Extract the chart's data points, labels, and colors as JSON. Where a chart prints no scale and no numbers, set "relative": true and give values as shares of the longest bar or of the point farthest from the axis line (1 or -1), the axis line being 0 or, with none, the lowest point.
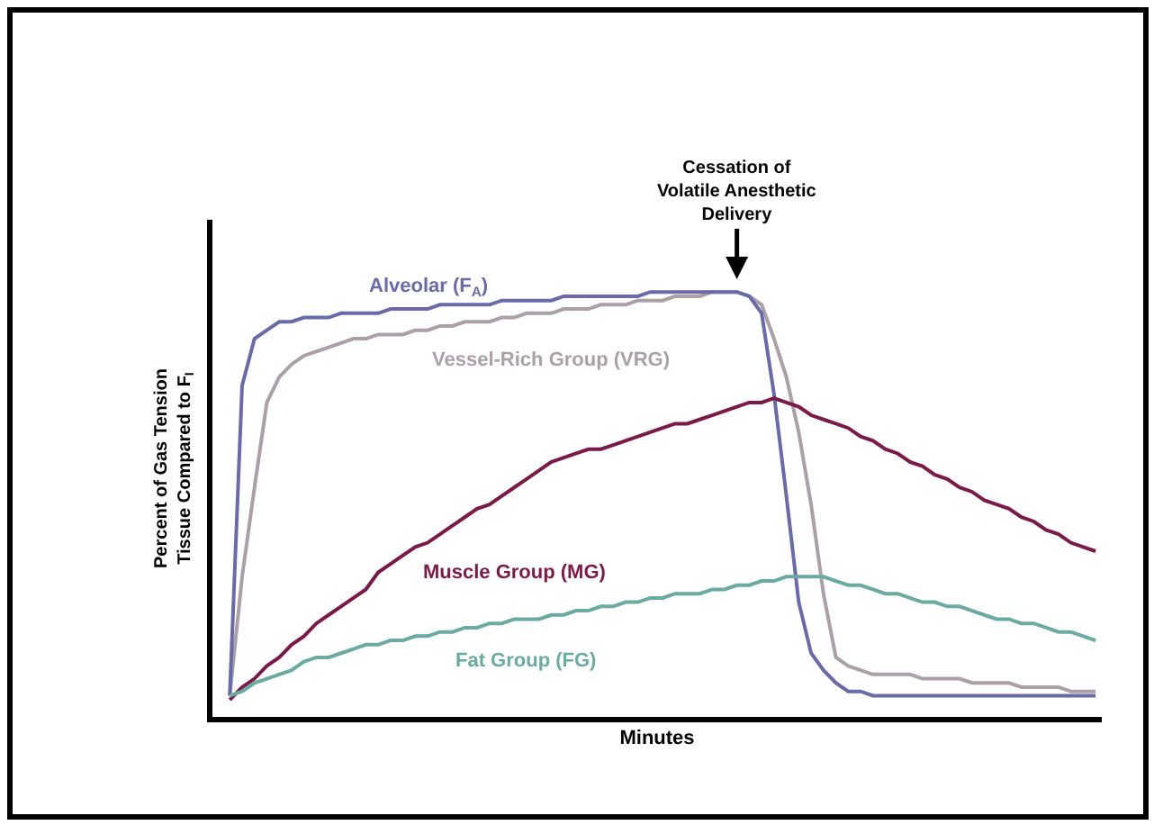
{
  "chart_data": {
    "type": "line",
    "relative": true,
    "xlabel": "Minutes",
    "ylabel": "Percent of Gas Tension Tissue Compared to F$_{I}$",
    "categories": [
      null,
      null,
      null,
      null,
      null,
      null,
      null,
      null,
      null,
      null,
      null,
      null,
      null,
      null,
      null,
      null,
      null,
      null,
      null,
      null,
      null,
      null,
      null,
      null,
      null,
      null,
      null,
      null,
      null,
      null,
      null,
      null,
      null,
      null,
      null,
      null,
      null,
      null,
      null,
      null,
      null,
      null,
      null,
      null,
      null,
      null,
      null,
      null,
      null,
      null,
      null,
      null,
      null,
      null,
      null,
      null,
      null,
      null,
      null,
      null,
      null,
      null,
      null,
      null,
      null,
      null,
      null,
      null,
      null,
      null,
      null
    ],
    "series": [
      {
        "name": "Vessel-Rich Group (VRG)",
        "color": "#a9a0a8",
        "values": [
          0.05,
          0.33,
          0.54,
          0.74,
          0.8,
          0.83,
          0.85,
          0.86,
          0.87,
          0.88,
          0.89,
          0.89,
          0.9,
          0.9,
          0.9,
          0.91,
          0.91,
          0.92,
          0.92,
          0.93,
          0.93,
          0.93,
          0.94,
          0.94,
          0.95,
          0.95,
          0.95,
          0.96,
          0.96,
          0.96,
          0.97,
          0.97,
          0.97,
          0.98,
          0.98,
          0.98,
          0.99,
          0.99,
          0.99,
          1.0,
          1.0,
          1.0,
          0.99,
          0.97,
          0.89,
          0.8,
          0.67,
          0.5,
          0.29,
          0.14,
          0.12,
          0.11,
          0.1,
          0.1,
          0.1,
          0.1,
          0.09,
          0.09,
          0.09,
          0.09,
          0.08,
          0.08,
          0.08,
          0.08,
          0.07,
          0.07,
          0.07,
          0.07,
          0.06,
          0.06,
          0.06
        ]
      },
      {
        "name": "Alveolar (F$_{A}$)",
        "color": "#6b6aa8",
        "values": [
          0.05,
          0.78,
          0.89,
          0.91,
          0.93,
          0.93,
          0.94,
          0.94,
          0.94,
          0.95,
          0.95,
          0.95,
          0.95,
          0.96,
          0.96,
          0.96,
          0.96,
          0.97,
          0.97,
          0.97,
          0.97,
          0.97,
          0.98,
          0.98,
          0.98,
          0.98,
          0.98,
          0.99,
          0.99,
          0.99,
          0.99,
          0.99,
          0.99,
          0.99,
          1.0,
          1.0,
          1.0,
          1.0,
          1.0,
          1.0,
          1.0,
          1.0,
          0.99,
          0.95,
          0.76,
          0.52,
          0.27,
          0.15,
          0.11,
          0.08,
          0.06,
          0.06,
          0.05,
          0.05,
          0.05,
          0.05,
          0.05,
          0.05,
          0.05,
          0.05,
          0.05,
          0.05,
          0.05,
          0.05,
          0.05,
          0.05,
          0.05,
          0.05,
          0.05,
          0.05,
          0.05
        ]
      },
      {
        "name": "Muscle Group (MG)",
        "color": "#7a1a48",
        "values": [
          0.04,
          0.07,
          0.09,
          0.12,
          0.14,
          0.17,
          0.19,
          0.22,
          0.24,
          0.26,
          0.28,
          0.3,
          0.34,
          0.36,
          0.38,
          0.4,
          0.41,
          0.43,
          0.45,
          0.47,
          0.49,
          0.5,
          0.52,
          0.54,
          0.56,
          0.58,
          0.6,
          0.61,
          0.62,
          0.63,
          0.63,
          0.64,
          0.65,
          0.66,
          0.67,
          0.68,
          0.69,
          0.69,
          0.7,
          0.71,
          0.72,
          0.73,
          0.74,
          0.74,
          0.75,
          0.74,
          0.73,
          0.71,
          0.7,
          0.69,
          0.68,
          0.66,
          0.65,
          0.63,
          0.62,
          0.6,
          0.59,
          0.57,
          0.56,
          0.54,
          0.53,
          0.51,
          0.5,
          0.49,
          0.47,
          0.46,
          0.44,
          0.43,
          0.41,
          0.4,
          0.39
        ]
      },
      {
        "name": "Fat Group (FG)",
        "color": "#6aaaa0",
        "values": [
          0.05,
          0.06,
          0.08,
          0.09,
          0.1,
          0.11,
          0.13,
          0.14,
          0.14,
          0.15,
          0.16,
          0.17,
          0.17,
          0.18,
          0.18,
          0.19,
          0.19,
          0.2,
          0.2,
          0.21,
          0.21,
          0.22,
          0.22,
          0.23,
          0.23,
          0.23,
          0.24,
          0.24,
          0.25,
          0.25,
          0.26,
          0.26,
          0.27,
          0.27,
          0.28,
          0.28,
          0.29,
          0.29,
          0.29,
          0.3,
          0.3,
          0.31,
          0.31,
          0.32,
          0.32,
          0.33,
          0.33,
          0.33,
          0.33,
          0.32,
          0.31,
          0.31,
          0.3,
          0.29,
          0.29,
          0.28,
          0.27,
          0.27,
          0.26,
          0.26,
          0.25,
          0.24,
          0.23,
          0.23,
          0.22,
          0.22,
          0.21,
          0.2,
          0.2,
          0.19,
          0.18
        ]
      }
    ],
    "annotations": [
      "Cessation of Volatile Anesthetic Delivery"
    ],
    "legend": false,
    "marker": "none",
    "line_style": "solid",
    "tick_labels": false
  }
}
